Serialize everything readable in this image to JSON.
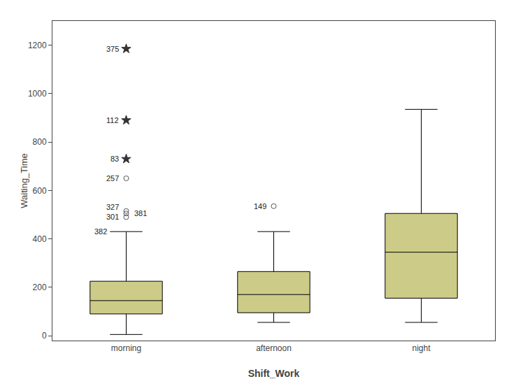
{
  "chart_data": {
    "type": "box",
    "xlabel": "Shift_Work",
    "ylabel": "Waiting_Time",
    "categories": [
      "morning",
      "afternoon",
      "night"
    ],
    "color": "#cccc88",
    "boxes": [
      {
        "whisker_low": 5,
        "q1": 90,
        "median": 145,
        "q3": 225,
        "whisker_high": 430,
        "outliers": [
          {
            "value": 490,
            "label": "301",
            "marker": "circle",
            "color": "#555555"
          },
          {
            "value": 505,
            "label": "381",
            "marker": "circle",
            "color": "#555555"
          },
          {
            "value": 515,
            "label": "327",
            "marker": "circle",
            "color": "#555555"
          },
          {
            "value": 650,
            "label": "257",
            "marker": "circle",
            "color": "#555555"
          },
          {
            "value": 730,
            "label": "83",
            "marker": "star",
            "color": "#333333"
          },
          {
            "value": 890,
            "label": "112",
            "marker": "star",
            "color": "#333333"
          },
          {
            "value": 1185,
            "label": "375",
            "marker": "star",
            "color": "#333333"
          }
        ],
        "whisker_labels": [
          {
            "value": 430,
            "label": "382"
          }
        ]
      },
      {
        "whisker_low": 55,
        "q1": 95,
        "median": 170,
        "q3": 265,
        "whisker_high": 430,
        "outliers": [
          {
            "value": 535,
            "label": "149",
            "marker": "circle",
            "color": "#555555"
          }
        ],
        "whisker_labels": []
      },
      {
        "whisker_low": 55,
        "q1": 155,
        "median": 345,
        "q3": 505,
        "whisker_high": 935,
        "outliers": [],
        "whisker_labels": []
      }
    ],
    "ylim": [
      -20,
      1300
    ],
    "yticks": [
      0,
      200,
      400,
      600,
      800,
      1000,
      1200
    ],
    "grid": false
  }
}
